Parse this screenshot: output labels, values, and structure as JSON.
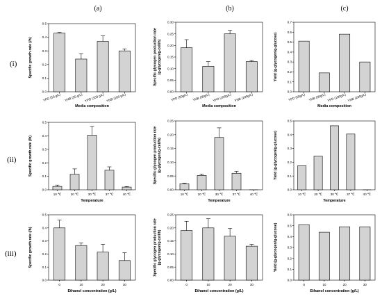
{
  "columns": [
    "(a)",
    "(b)",
    "(c)"
  ],
  "rows": [
    "(i)",
    "(ii)",
    "(iii)"
  ],
  "chart_data": [
    {
      "id": "i-a",
      "type": "bar",
      "categories": [
        "YPD (50 g/L)",
        "YNB (50 g/L)",
        "YPD (100 g/L)",
        "YNB (100 g/L)"
      ],
      "values": [
        0.43,
        0.24,
        0.37,
        0.3
      ],
      "errors": [
        0.005,
        0.04,
        0.04,
        0.015
      ],
      "ylim": [
        0,
        0.5
      ],
      "yticks": [
        "0.0",
        "0.1",
        "0.2",
        "0.3",
        "0.4",
        "0.5"
      ],
      "ylabel": "Specific growth rate (/h)",
      "xlabel": "Media composition",
      "rotate": true
    },
    {
      "id": "i-b",
      "type": "bar",
      "categories": [
        "YPD (50g/L)",
        "YNB (50g/L)",
        "YPD (100g/L)",
        "YNB (100g/L)"
      ],
      "values": [
        0.19,
        0.11,
        0.25,
        0.13
      ],
      "errors": [
        0.035,
        0.02,
        0.015,
        0.005
      ],
      "ylim": [
        0,
        0.3
      ],
      "yticks": [
        "0.00",
        "0.05",
        "0.10",
        "0.15",
        "0.20",
        "0.25",
        "0.30"
      ],
      "ylabel": "Specific glycogen production rate\n(g-glycogen/g-cell/h)",
      "xlabel": "Media composition",
      "rotate": true
    },
    {
      "id": "i-c",
      "type": "bar",
      "categories": [
        "YPD (50g/L)",
        "YNB (50g/L)",
        "YPD (100g/L)",
        "YNB (100g/L)"
      ],
      "values": [
        0.51,
        0.19,
        0.58,
        0.3
      ],
      "errors": [
        0,
        0,
        0,
        0
      ],
      "ylim": [
        0,
        0.7
      ],
      "yticks": [
        "0.0",
        "0.1",
        "0.2",
        "0.3",
        "0.4",
        "0.5",
        "0.6",
        "0.7"
      ],
      "ylabel": "Yield (g-glycogen/g-glucose)",
      "xlabel": "Media composition",
      "rotate": true
    },
    {
      "id": "ii-a",
      "type": "bar",
      "categories": [
        "10 ℃",
        "20 ℃",
        "30 ℃",
        "37 ℃",
        "40 ℃"
      ],
      "values": [
        0.025,
        0.115,
        0.405,
        0.145,
        0.02
      ],
      "errors": [
        0.01,
        0.04,
        0.065,
        0.025,
        0.004
      ],
      "ylim": [
        0,
        0.5
      ],
      "yticks": [
        "0.0",
        "0.1",
        "0.2",
        "0.3",
        "0.4",
        "0.5"
      ],
      "ylabel": "Specific growth rate (/h)",
      "xlabel": "Temperature",
      "rotate": false
    },
    {
      "id": "ii-b",
      "type": "bar",
      "categories": [
        "10 ℃",
        "20 ℃",
        "30 ℃",
        "37 ℃",
        "40 ℃"
      ],
      "values": [
        0.022,
        0.052,
        0.19,
        0.06,
        0
      ],
      "errors": [
        0.002,
        0.005,
        0.035,
        0.007,
        0
      ],
      "ylim": [
        0,
        0.25
      ],
      "yticks": [
        "0.00",
        "0.05",
        "0.10",
        "0.15",
        "0.20",
        "0.25"
      ],
      "ylabel": "Specific glycogen production rate\n(g-glycogen/g-cell/h)",
      "xlabel": "Temperature",
      "rotate": false
    },
    {
      "id": "ii-c",
      "type": "bar",
      "categories": [
        "10 ℃",
        "20 ℃",
        "30 ℃",
        "37 ℃",
        "40 ℃"
      ],
      "values": [
        0.175,
        0.245,
        0.465,
        0.405,
        0
      ],
      "errors": [
        0,
        0,
        0,
        0,
        0
      ],
      "ylim": [
        0,
        0.5
      ],
      "yticks": [
        "0.0",
        "0.1",
        "0.2",
        "0.3",
        "0.4",
        "0.5"
      ],
      "ylabel": "Yield (g-glycogen/g-glucose)",
      "xlabel": "Temperature",
      "rotate": false
    },
    {
      "id": "iii-a",
      "type": "bar",
      "categories": [
        "0",
        "10",
        "20",
        "30"
      ],
      "values": [
        0.4,
        0.265,
        0.215,
        0.15
      ],
      "errors": [
        0.06,
        0.02,
        0.06,
        0.06
      ],
      "ylim": [
        0,
        0.5
      ],
      "yticks": [
        "0.0",
        "0.1",
        "0.2",
        "0.3",
        "0.4",
        "0.5"
      ],
      "ylabel": "Specific growth rate (/h)",
      "xlabel": "Ethanol concentration (g/L)",
      "rotate": false
    },
    {
      "id": "iii-b",
      "type": "bar",
      "categories": [
        "0",
        "10",
        "20",
        "30"
      ],
      "values": [
        0.19,
        0.2,
        0.168,
        0.13
      ],
      "errors": [
        0.035,
        0.035,
        0.03,
        0.007
      ],
      "ylim": [
        0,
        0.25
      ],
      "yticks": [
        "0.00",
        "0.05",
        "0.10",
        "0.15",
        "0.20",
        "0.25"
      ],
      "ylabel": "Specific glycogen production rate\n(g-glycogen/g-cell/h)",
      "xlabel": "Ethanol concentration (g/L)",
      "rotate": false
    },
    {
      "id": "iii-c",
      "type": "bar",
      "categories": [
        "0",
        "10",
        "20",
        "30"
      ],
      "values": [
        0.51,
        0.44,
        0.49,
        0.49
      ],
      "errors": [
        0,
        0,
        0,
        0
      ],
      "ylim": [
        0,
        0.6
      ],
      "yticks": [
        "0.0",
        "0.1",
        "0.2",
        "0.3",
        "0.4",
        "0.5",
        "0.6"
      ],
      "ylabel": "Yield (g-glycogen/g-glucose)",
      "xlabel": "Ethanol concentration (g/L)",
      "rotate": false
    }
  ]
}
